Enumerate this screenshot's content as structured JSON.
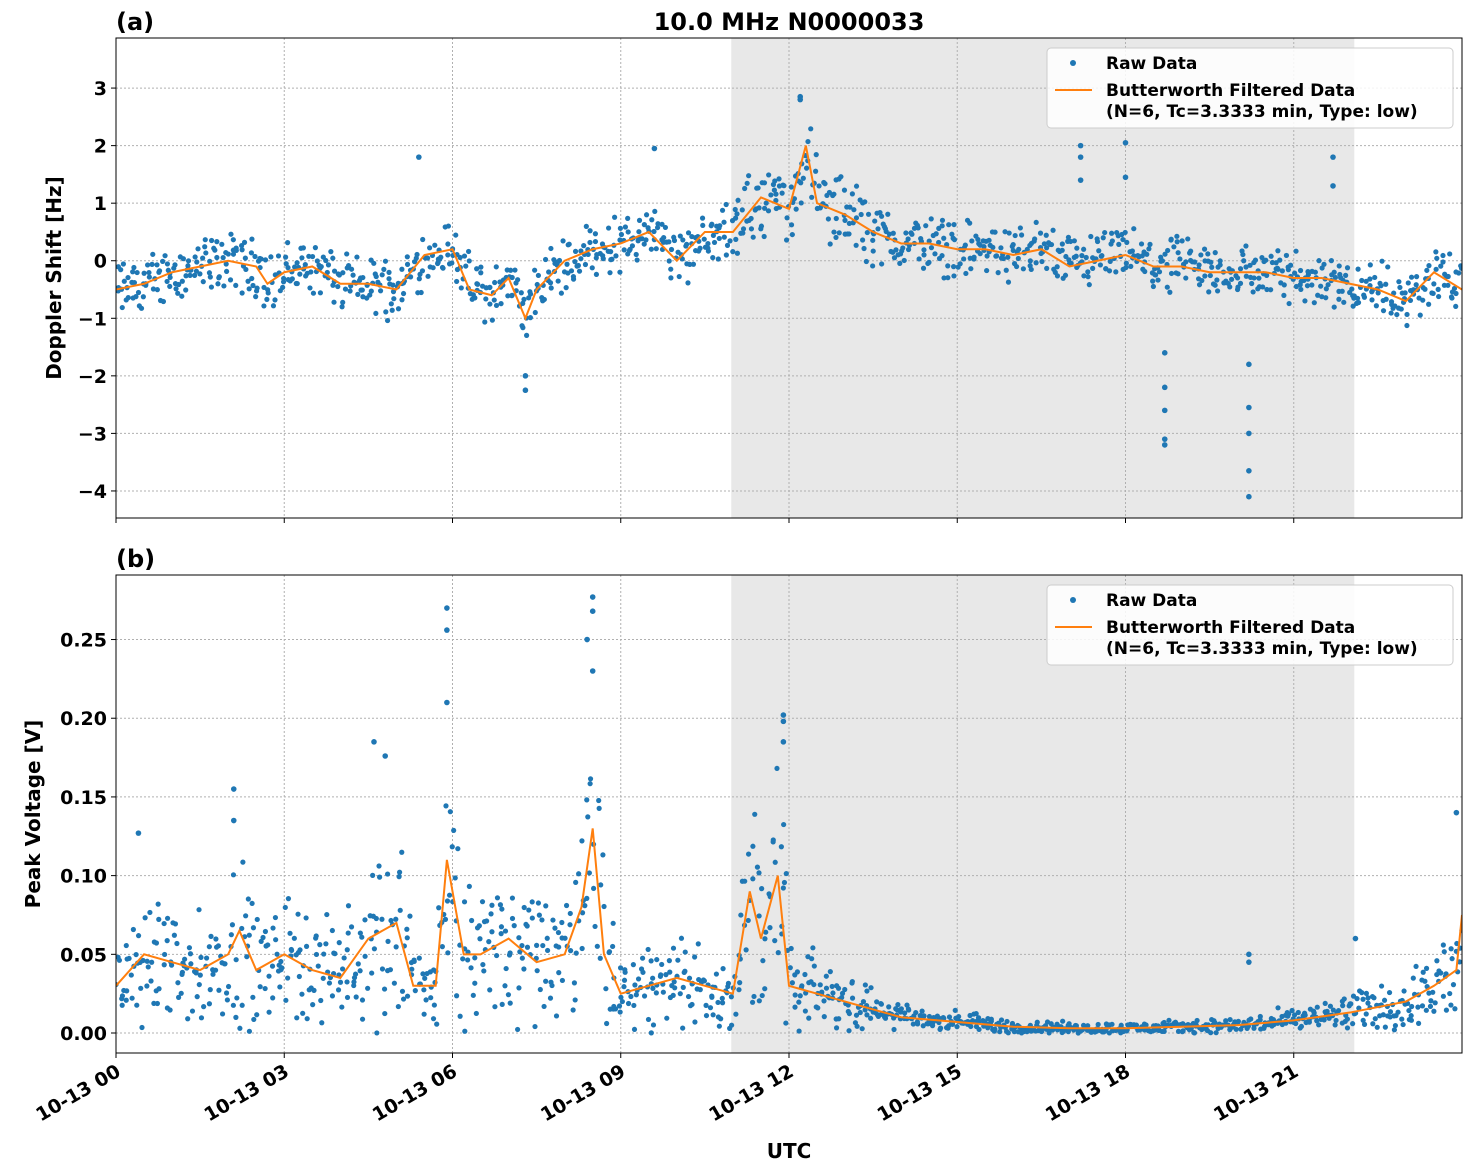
{
  "chart_data": [
    {
      "type": "scatter+line",
      "panel_label": "(a)",
      "title": "10.0 MHz N0000033",
      "ylabel": "Doppler Shift [Hz]",
      "xlabel": "",
      "xlim_hours_utc": [
        0,
        24
      ],
      "ylim": [
        -4.47,
        3.87
      ],
      "yticks": [
        3,
        2,
        1,
        0,
        -1,
        -2,
        -3,
        -4
      ],
      "ytick_labels": [
        "3",
        "2",
        "1",
        "0",
        "−1",
        "−2",
        "−3",
        "−4"
      ],
      "grid": true,
      "legend": "top-right",
      "legend_entries": [
        "Raw Data",
        "Butterworth Filtered Data",
        "(N=6, Tc=3.3333 min, Type: low)"
      ],
      "shaded_interval_hours_utc": [
        10.97,
        22.08
      ],
      "filtered_series": {
        "name": "Butterworth Filtered Data (N=6, Tc=3.3333 min, Type: low)",
        "hours": [
          0,
          0.5,
          1,
          1.5,
          2,
          2.5,
          2.7,
          3,
          3.5,
          4,
          4.5,
          5,
          5.5,
          6,
          6.3,
          6.7,
          7,
          7.3,
          7.5,
          8,
          8.5,
          9,
          9.5,
          10,
          10.5,
          11,
          11.5,
          12,
          12.3,
          12.5,
          13,
          13.5,
          14,
          14.5,
          15,
          15.5,
          16,
          16.5,
          17,
          17.5,
          18,
          18.5,
          19,
          19.5,
          20,
          20.5,
          21,
          21.5,
          22,
          22.5,
          23,
          23.5,
          24
        ],
        "values": [
          -0.5,
          -0.4,
          -0.2,
          -0.1,
          0.0,
          -0.1,
          -0.4,
          -0.2,
          -0.1,
          -0.4,
          -0.4,
          -0.5,
          0.1,
          0.2,
          -0.5,
          -0.6,
          -0.3,
          -1.0,
          -0.5,
          0.0,
          0.2,
          0.3,
          0.5,
          0.0,
          0.5,
          0.5,
          1.1,
          0.9,
          2.0,
          1.0,
          0.8,
          0.5,
          0.3,
          0.3,
          0.2,
          0.2,
          0.1,
          0.2,
          -0.1,
          0.0,
          0.1,
          -0.1,
          -0.1,
          -0.2,
          -0.2,
          -0.2,
          -0.3,
          -0.3,
          -0.4,
          -0.5,
          -0.7,
          -0.2,
          -0.5
        ]
      },
      "raw_series": {
        "name": "Raw Data",
        "typical_spread": 0.45,
        "outliers": [
          [
            18.7,
            -3.2
          ],
          [
            18.7,
            -3.1
          ],
          [
            18.7,
            -2.6
          ],
          [
            18.7,
            -2.2
          ],
          [
            18.7,
            -1.6
          ],
          [
            20.2,
            -4.1
          ],
          [
            20.2,
            -3.65
          ],
          [
            20.2,
            -3.0
          ],
          [
            20.2,
            -2.55
          ],
          [
            20.2,
            -1.8
          ],
          [
            17.2,
            2.0
          ],
          [
            17.2,
            1.8
          ],
          [
            17.2,
            1.4
          ],
          [
            18.0,
            2.05
          ],
          [
            18.0,
            1.45
          ],
          [
            21.7,
            1.8
          ],
          [
            21.7,
            1.3
          ],
          [
            12.2,
            2.85
          ],
          [
            12.2,
            2.8
          ],
          [
            5.4,
            1.8
          ],
          [
            9.6,
            1.95
          ],
          [
            7.3,
            -2.25
          ],
          [
            7.3,
            -2.0
          ]
        ]
      }
    },
    {
      "type": "scatter+line",
      "panel_label": "(b)",
      "ylabel": "Peak Voltage [V]",
      "xlabel": "UTC",
      "xlim_hours_utc": [
        0,
        24
      ],
      "ylim": [
        -0.0127,
        0.291
      ],
      "yticks": [
        0,
        0.05,
        0.1,
        0.15,
        0.2,
        0.25
      ],
      "ytick_labels": [
        "0.00",
        "0.05",
        "0.10",
        "0.15",
        "0.20",
        "0.25"
      ],
      "xticks_hours": [
        0,
        3,
        6,
        9,
        12,
        15,
        18,
        21
      ],
      "xtick_labels": [
        "10-13 00",
        "10-13 03",
        "10-13 06",
        "10-13 09",
        "10-13 12",
        "10-13 15",
        "10-13 18",
        "10-13 21"
      ],
      "grid": true,
      "legend": "top-right",
      "legend_entries": [
        "Raw Data",
        "Butterworth Filtered Data",
        "(N=6, Tc=3.3333 min, Type: low)"
      ],
      "shaded_interval_hours_utc": [
        10.97,
        22.08
      ],
      "filtered_series": {
        "name": "Butterworth Filtered Data (N=6, Tc=3.3333 min, Type: low)",
        "hours": [
          0,
          0.5,
          1,
          1.5,
          2,
          2.2,
          2.5,
          3,
          3.5,
          4,
          4.5,
          5,
          5.3,
          5.7,
          5.9,
          6.2,
          6.5,
          7,
          7.5,
          8,
          8.3,
          8.5,
          8.7,
          9,
          9.5,
          10,
          10.5,
          11,
          11.3,
          11.5,
          11.8,
          12,
          12.5,
          13,
          13.5,
          14,
          15,
          16,
          17,
          18,
          19,
          20,
          21,
          22,
          23,
          23.5,
          23.9,
          24
        ],
        "values": [
          0.03,
          0.05,
          0.045,
          0.04,
          0.05,
          0.065,
          0.04,
          0.05,
          0.04,
          0.035,
          0.06,
          0.07,
          0.03,
          0.03,
          0.11,
          0.05,
          0.05,
          0.06,
          0.045,
          0.05,
          0.08,
          0.13,
          0.05,
          0.025,
          0.03,
          0.035,
          0.03,
          0.025,
          0.09,
          0.06,
          0.1,
          0.03,
          0.025,
          0.02,
          0.015,
          0.01,
          0.007,
          0.004,
          0.003,
          0.003,
          0.004,
          0.005,
          0.008,
          0.013,
          0.02,
          0.03,
          0.04,
          0.075
        ]
      },
      "raw_series": {
        "name": "Raw Data",
        "relative_spread": 0.65,
        "outliers": [
          [
            5.9,
            0.27
          ],
          [
            5.9,
            0.256
          ],
          [
            5.9,
            0.21
          ],
          [
            8.5,
            0.277
          ],
          [
            8.5,
            0.268
          ],
          [
            8.4,
            0.25
          ],
          [
            8.5,
            0.23
          ],
          [
            2.1,
            0.155
          ],
          [
            2.1,
            0.135
          ],
          [
            4.6,
            0.185
          ],
          [
            4.8,
            0.176
          ],
          [
            11.9,
            0.202
          ],
          [
            11.9,
            0.198
          ],
          [
            11.9,
            0.185
          ],
          [
            20.2,
            0.05
          ],
          [
            20.2,
            0.045
          ],
          [
            0.4,
            0.127
          ],
          [
            23.9,
            0.14
          ],
          [
            22.1,
            0.06
          ]
        ]
      }
    }
  ]
}
